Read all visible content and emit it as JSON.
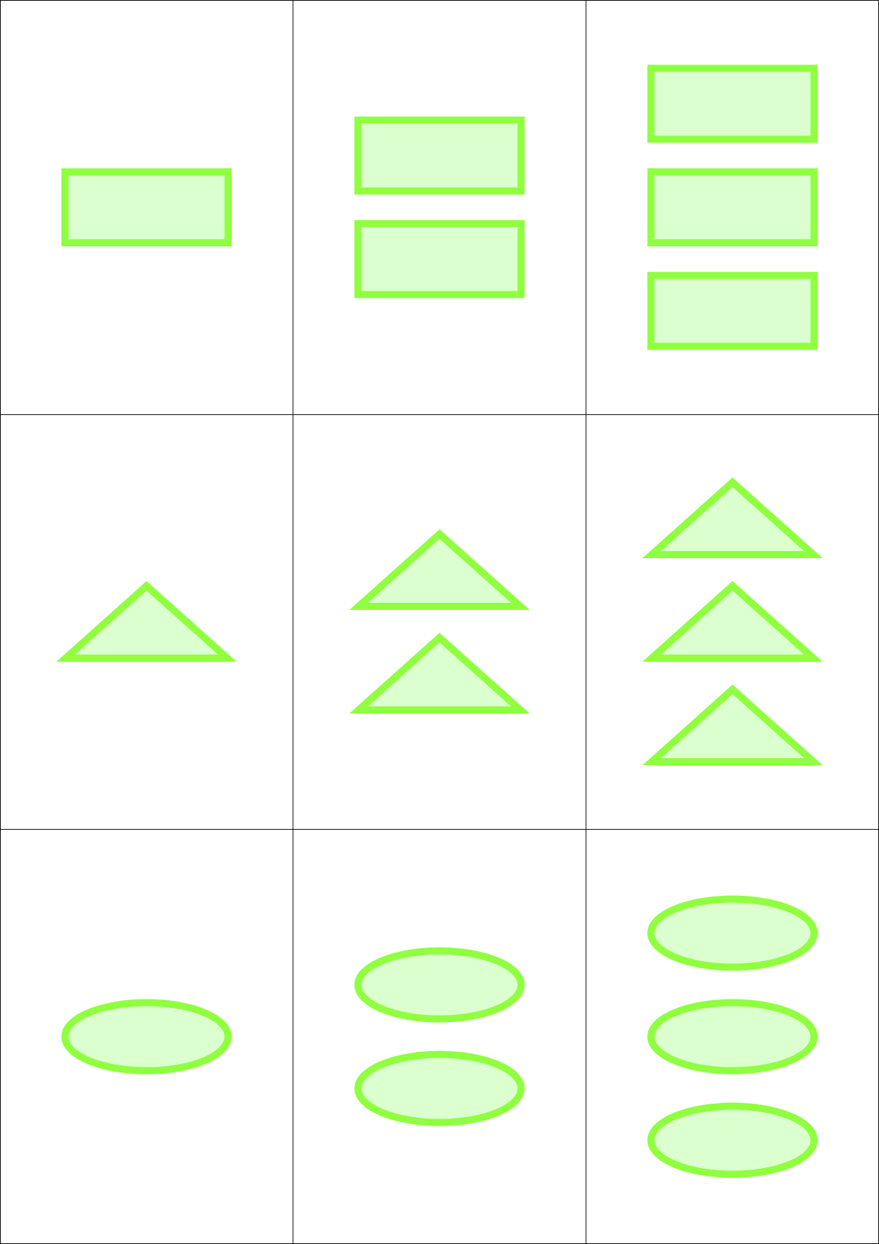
{
  "grid": {
    "rows": 3,
    "cols": 3
  },
  "colors": {
    "stroke": "#8fff3f",
    "fill": "#dcffd0",
    "grid_line": "#000000",
    "background": "#ffffff"
  },
  "rows": [
    {
      "shape": "rectangle",
      "counts": [
        1,
        2,
        3
      ]
    },
    {
      "shape": "triangle",
      "counts": [
        1,
        2,
        3
      ]
    },
    {
      "shape": "ellipse",
      "counts": [
        1,
        2,
        3
      ]
    }
  ]
}
